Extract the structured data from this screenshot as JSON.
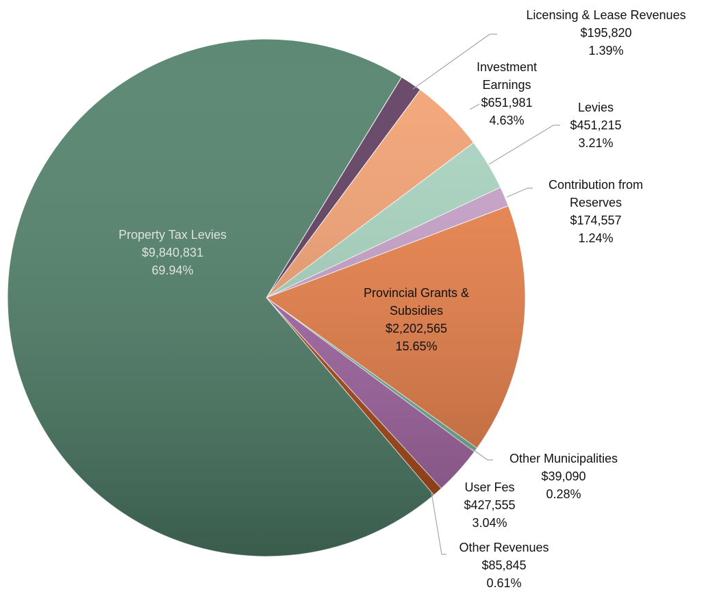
{
  "chart_data": {
    "type": "pie",
    "categories": [
      "Licensing & Lease Revenues",
      "Investment Earnings",
      "Levies",
      "Contribution from Reserves",
      "Provincial Grants & Subsidies",
      "Other Municipalities",
      "User Fes",
      "Other Revenues",
      "Property Tax Levies"
    ],
    "values": [
      1.39,
      4.63,
      3.21,
      1.24,
      15.65,
      0.28,
      3.04,
      0.61,
      69.94
    ],
    "value_labels": [
      "1.39%",
      "4.63%",
      "3.21%",
      "1.24%",
      "15.65%",
      "0.28%",
      "3.04%",
      "0.61%",
      "69.94%"
    ],
    "amounts": [
      195820,
      651981,
      451215,
      174557,
      2202565,
      39090,
      427555,
      85845,
      9840831
    ],
    "amount_labels": [
      "$195,820",
      "$651,981",
      "$451,215",
      "$174,557",
      "$2,202,565",
      "$39,090",
      "$427,555",
      "$85,845",
      "$9,840,831"
    ],
    "colors": [
      "#5e3b5e",
      "#f5a171",
      "#a9d6c1",
      "#c9a2cc",
      "#ef8148",
      "#74b59c",
      "#a868a8",
      "#b04a14",
      "#4f8069"
    ]
  }
}
